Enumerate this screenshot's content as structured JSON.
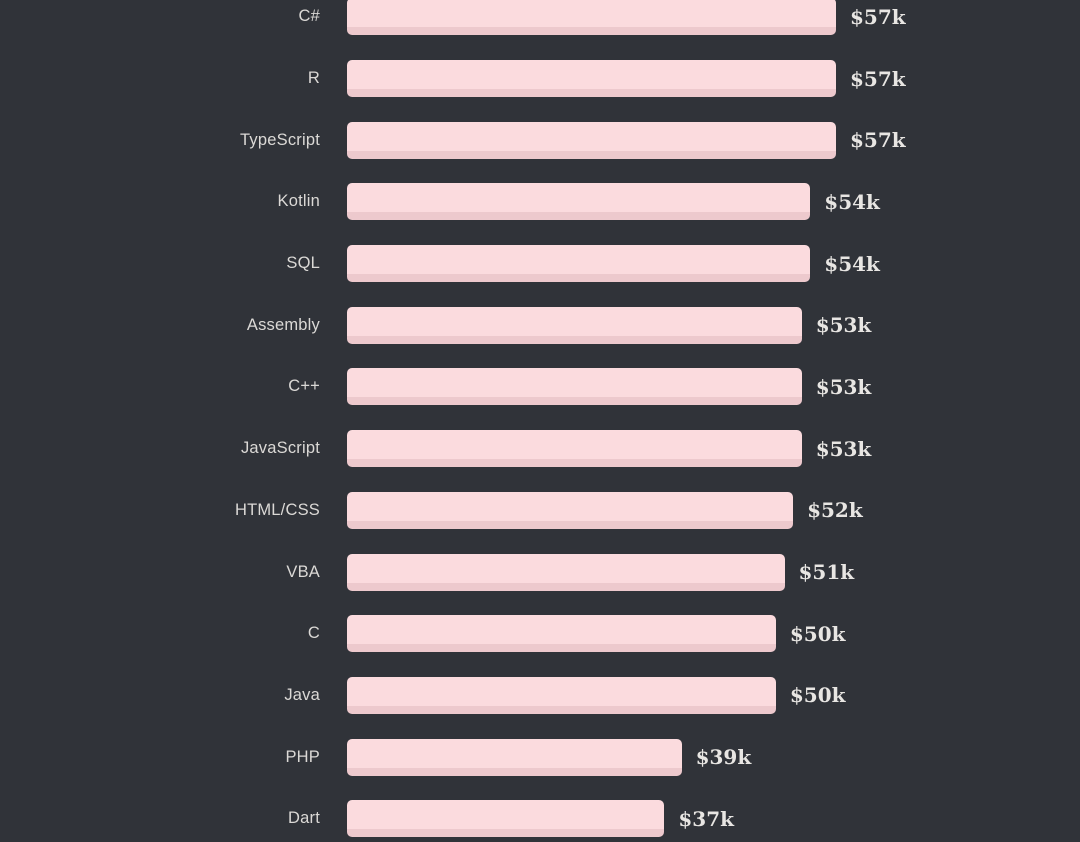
{
  "chart_data": {
    "type": "bar",
    "orientation": "horizontal",
    "categories": [
      "C#",
      "R",
      "TypeScript",
      "Kotlin",
      "SQL",
      "Assembly",
      "C++",
      "JavaScript",
      "HTML/CSS",
      "VBA",
      "C",
      "Java",
      "PHP",
      "Dart"
    ],
    "values": [
      57,
      57,
      57,
      54,
      54,
      53,
      53,
      53,
      52,
      51,
      50,
      50,
      39,
      37
    ],
    "value_labels": [
      "$57k",
      "$57k",
      "$57k",
      "$54k",
      "$54k",
      "$53k",
      "$53k",
      "$53k",
      "$52k",
      "$51k",
      "$50k",
      "$50k",
      "$39k",
      "$37k"
    ],
    "unit": "$k",
    "xlim": [
      0,
      57
    ],
    "grid": false,
    "legend": "none",
    "value_label_position": "right-of-bar"
  },
  "colors": {
    "bg": "#303339",
    "bar": "#fbdbde",
    "barShadow": "#edc9cd",
    "label": "#dbd9d6",
    "value": "#e8e6e3"
  }
}
